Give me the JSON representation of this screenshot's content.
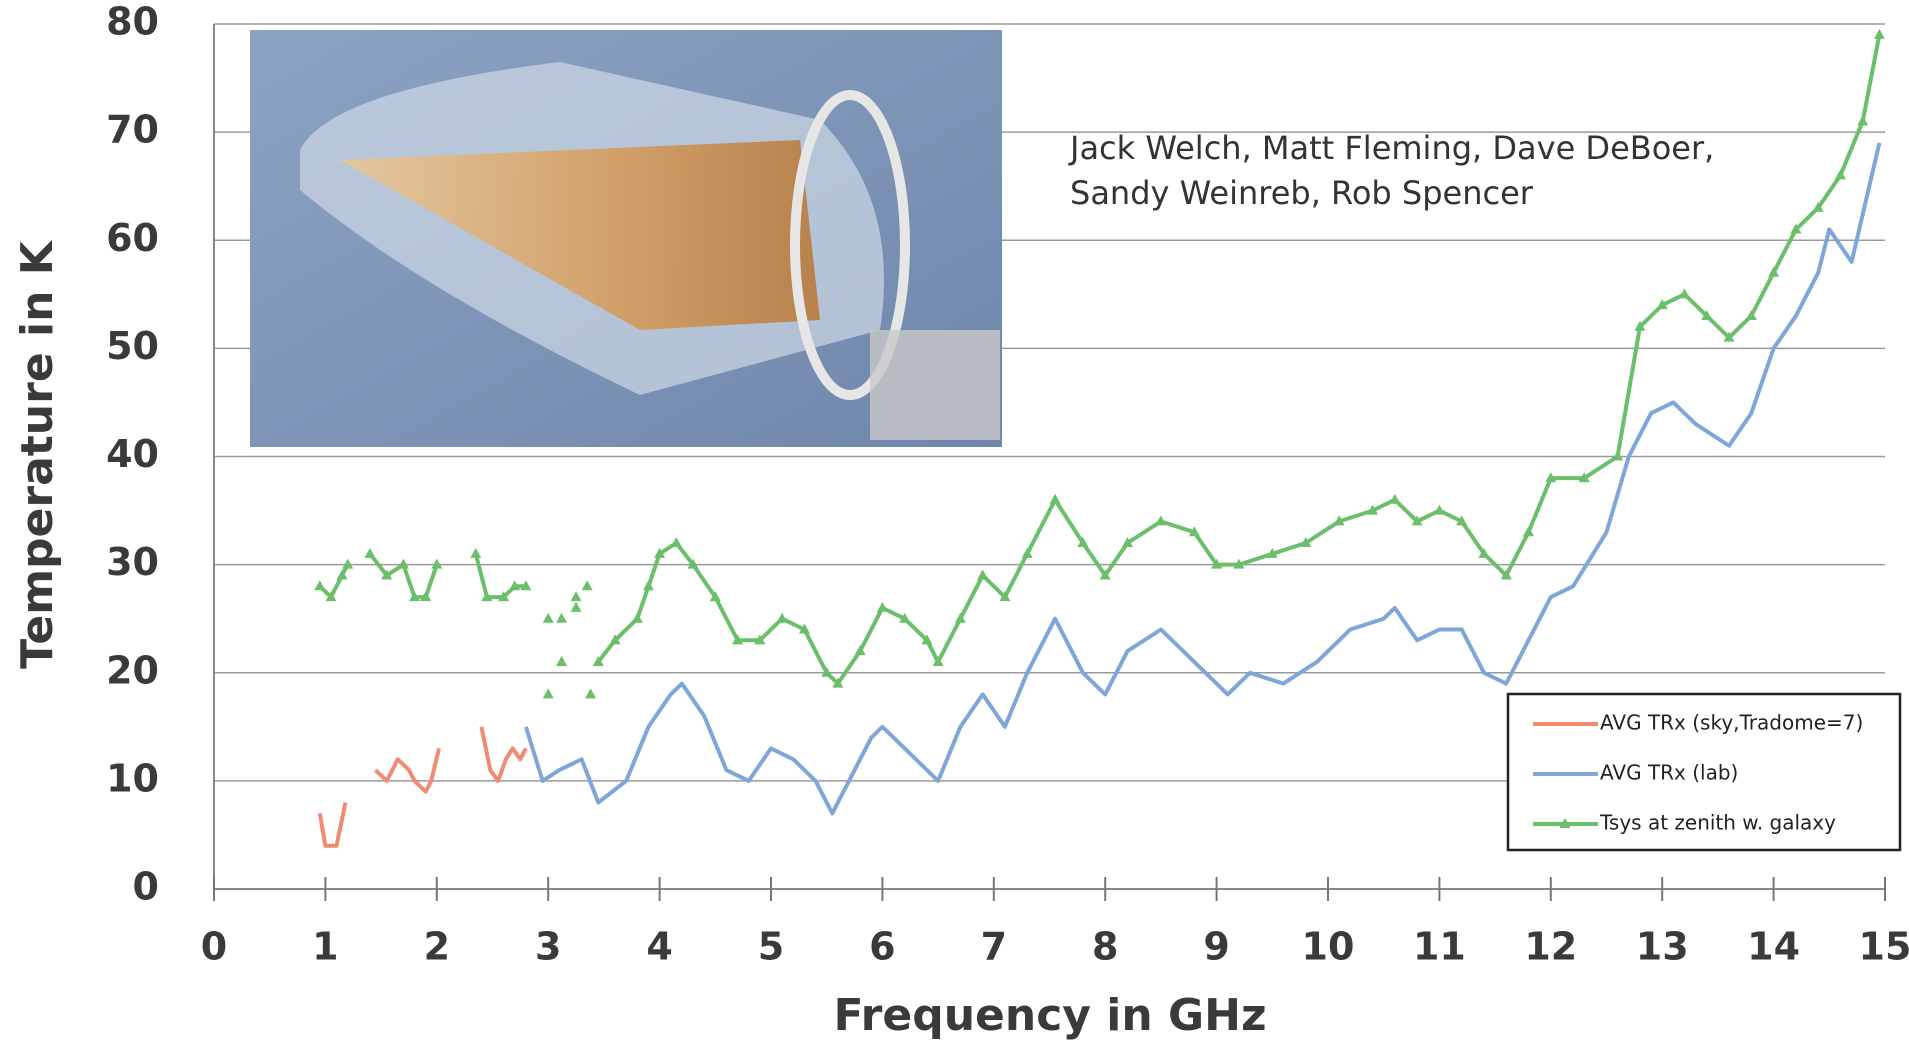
{
  "chart_data": {
    "type": "line",
    "x_label": "Frequency in GHz",
    "y_label": "Temperature in K",
    "annotation": [
      "Jack Welch, Matt Fleming, Dave DeBoer,",
      "Sandy Weinreb, Rob Spencer"
    ],
    "xlim": [
      0,
      15
    ],
    "xticks": [
      0,
      1,
      2,
      3,
      4,
      5,
      6,
      7,
      8,
      9,
      10,
      11,
      12,
      13,
      14,
      15
    ],
    "ylim": [
      0,
      80
    ],
    "yticks": [
      0,
      10,
      20,
      30,
      40,
      50,
      60,
      70,
      80
    ],
    "grid": true,
    "legend": "lower right",
    "series": [
      {
        "name": "AVG TRx (sky,Tradome=7)",
        "color": "#f08a72",
        "marker": "none",
        "x": [
          0.95,
          1.0,
          1.1,
          1.18,
          null,
          1.45,
          1.55,
          1.65,
          1.75,
          1.8,
          1.9,
          1.95,
          2.02,
          null,
          2.4,
          2.48,
          2.55,
          2.62,
          2.68,
          2.75,
          2.8
        ],
        "values": [
          7,
          4,
          4,
          8,
          null,
          11,
          10,
          12,
          11,
          10,
          9,
          10,
          13,
          null,
          15,
          11,
          10,
          12,
          13,
          12,
          13
        ]
      },
      {
        "name": "AVG TRx (lab)",
        "color": "#7fa6d8",
        "marker": "none",
        "x": [
          2.8,
          2.95,
          3.1,
          3.3,
          3.45,
          3.7,
          3.9,
          4.1,
          4.2,
          4.4,
          4.6,
          4.8,
          5.0,
          5.2,
          5.4,
          5.55,
          5.7,
          5.9,
          6.0,
          6.2,
          6.4,
          6.5,
          6.7,
          6.9,
          7.1,
          7.3,
          7.55,
          7.8,
          8.0,
          8.2,
          8.5,
          8.7,
          8.9,
          9.1,
          9.3,
          9.6,
          9.9,
          10.2,
          10.5,
          10.6,
          10.8,
          11.0,
          11.2,
          11.4,
          11.6,
          11.8,
          12.0,
          12.2,
          12.5,
          12.7,
          12.9,
          13.1,
          13.3,
          13.6,
          13.8,
          14.0,
          14.2,
          14.4,
          14.5,
          14.7,
          14.95
        ],
        "values": [
          15,
          10,
          11,
          12,
          8,
          10,
          15,
          18,
          19,
          16,
          11,
          10,
          13,
          12,
          10,
          7,
          10,
          14,
          15,
          13,
          11,
          10,
          15,
          18,
          15,
          20,
          25,
          20,
          18,
          22,
          24,
          22,
          20,
          18,
          20,
          19,
          21,
          24,
          25,
          26,
          23,
          24,
          24,
          20,
          19,
          23,
          27,
          28,
          33,
          40,
          44,
          45,
          43,
          41,
          44,
          50,
          53,
          57,
          61,
          58,
          69
        ]
      },
      {
        "name": "Tsys at zenith w. galaxy",
        "color": "#6cbf6a",
        "marker": "triangle",
        "x": [
          0.95,
          1.05,
          1.15,
          1.2,
          null,
          1.4,
          1.55,
          1.7,
          1.8,
          1.9,
          2.0,
          null,
          2.35,
          2.45,
          2.6,
          2.7,
          2.8,
          null,
          3.0,
          null,
          3.12,
          null,
          3.25,
          null,
          3.35,
          null,
          3.12,
          null,
          3.0,
          null,
          3.25,
          null,
          3.38,
          null,
          3.45,
          3.6,
          3.8,
          3.9,
          4.0,
          4.15,
          4.3,
          4.5,
          4.7,
          4.9,
          5.1,
          5.3,
          5.5,
          5.6,
          5.8,
          6.0,
          6.2,
          6.4,
          6.5,
          6.7,
          6.9,
          7.1,
          7.3,
          7.55,
          7.8,
          8.0,
          8.2,
          8.5,
          8.8,
          9.0,
          9.2,
          9.5,
          9.8,
          10.1,
          10.4,
          10.6,
          10.8,
          11.0,
          11.2,
          11.4,
          11.6,
          11.8,
          12.0,
          12.3,
          12.6,
          12.8,
          13.0,
          13.2,
          13.4,
          13.6,
          13.8,
          14.0,
          14.2,
          14.4,
          14.6,
          14.8,
          14.95
        ],
        "values": [
          28,
          27,
          29,
          30,
          null,
          31,
          29,
          30,
          27,
          27,
          30,
          null,
          31,
          27,
          27,
          28,
          28,
          null,
          25,
          null,
          25,
          null,
          27,
          null,
          28,
          null,
          21,
          null,
          18,
          null,
          26,
          null,
          18,
          null,
          21,
          23,
          25,
          28,
          31,
          32,
          30,
          27,
          23,
          23,
          25,
          24,
          20,
          19,
          22,
          26,
          25,
          23,
          21,
          25,
          29,
          27,
          31,
          36,
          32,
          29,
          32,
          34,
          33,
          30,
          30,
          31,
          32,
          34,
          35,
          36,
          34,
          35,
          34,
          31,
          29,
          33,
          38,
          38,
          40,
          52,
          54,
          55,
          53,
          51,
          53,
          57,
          61,
          63,
          66,
          71,
          79
        ]
      }
    ]
  }
}
